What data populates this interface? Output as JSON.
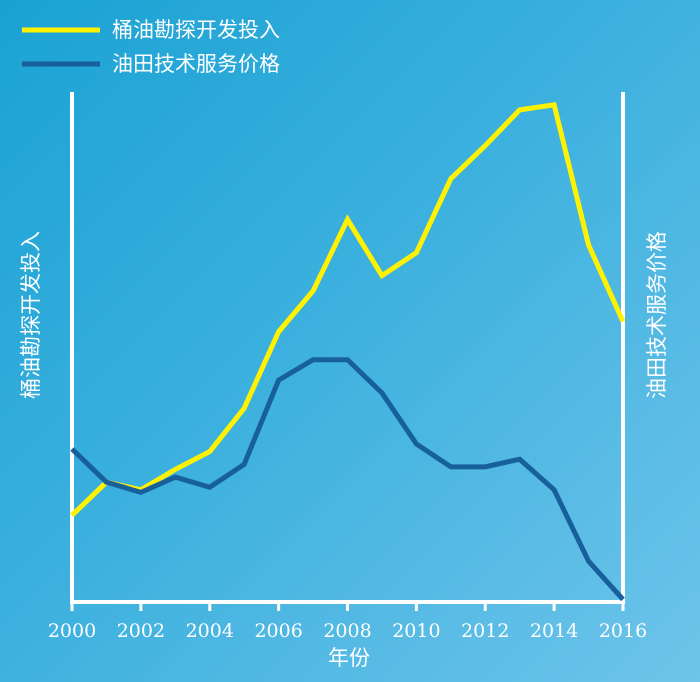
{
  "chart_data": {
    "type": "line",
    "xlabel": "年份",
    "ylabel_left": "桶油勘探开发投入",
    "ylabel_right": "油田技术服务价格",
    "x": [
      2000,
      2001,
      2002,
      2003,
      2004,
      2005,
      2006,
      2007,
      2008,
      2009,
      2010,
      2011,
      2012,
      2013,
      2014,
      2015,
      2016
    ],
    "x_tick_labels": [
      "2000",
      "2002",
      "2004",
      "2006",
      "2008",
      "2010",
      "2012",
      "2014",
      "2016"
    ],
    "x_range": [
      2000,
      2016
    ],
    "y_range": [
      0,
      100
    ],
    "y_ticks_shown": false,
    "grid": false,
    "legend_position": "top-left",
    "series": [
      {
        "name": "桶油勘探开发投入",
        "color": "#fff200",
        "values": [
          17,
          23.5,
          22,
          26,
          29.5,
          38,
          53,
          61,
          75,
          64,
          68.5,
          83,
          89.5,
          96.5,
          97.5,
          70,
          55
        ]
      },
      {
        "name": "油田技术服务价格",
        "color": "#17609c",
        "values": [
          30,
          23.5,
          21.5,
          24.5,
          22.5,
          27,
          43.5,
          47.5,
          47.5,
          41,
          31,
          26.5,
          26.5,
          28,
          22,
          8,
          0.5
        ]
      }
    ]
  }
}
